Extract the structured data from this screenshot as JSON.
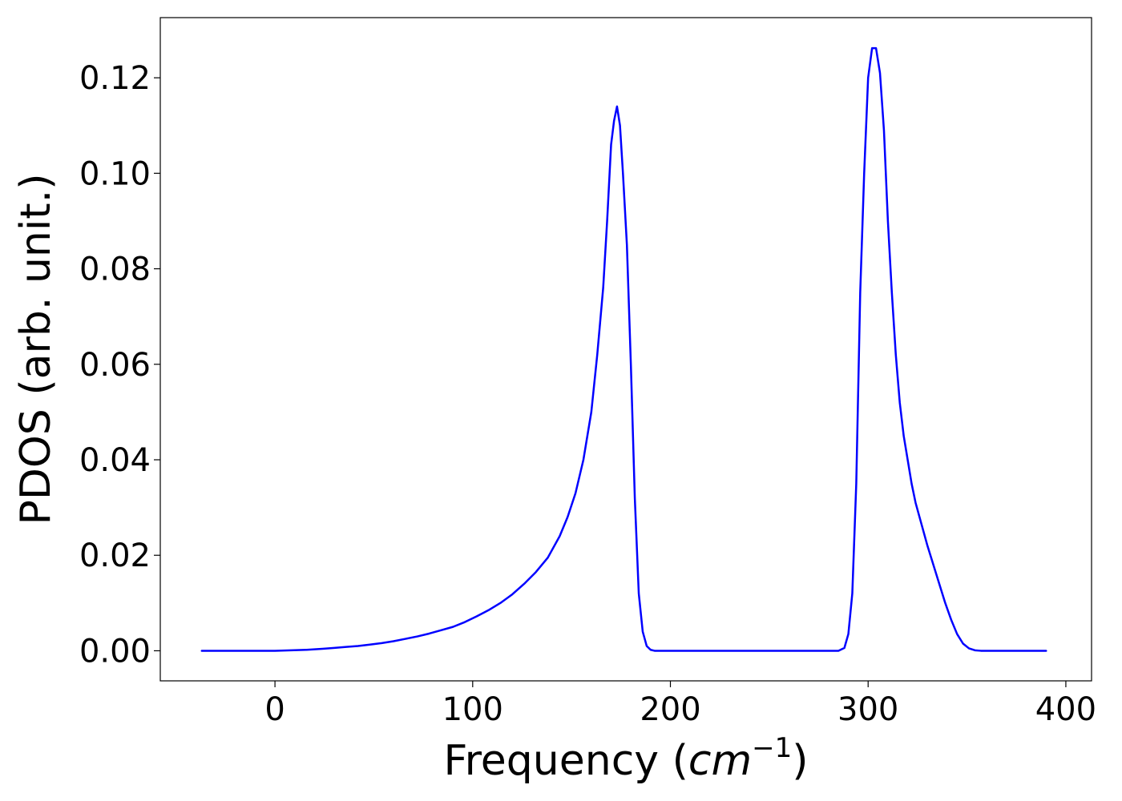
{
  "chart_data": {
    "type": "line",
    "xlabel": "Frequency (",
    "xlabel_unit_base": "cm",
    "xlabel_unit_exp": "−1",
    "xlabel_close": ")",
    "ylabel": "PDOS (arb. unit.)",
    "xlim": [
      -58,
      413
    ],
    "ylim": [
      -0.0063,
      0.1326
    ],
    "x_ticks": [
      0,
      100,
      200,
      300,
      400
    ],
    "x_tick_labels": [
      "0",
      "100",
      "200",
      "300",
      "400"
    ],
    "y_ticks": [
      0.0,
      0.02,
      0.04,
      0.06,
      0.08,
      0.1,
      0.12
    ],
    "y_tick_labels": [
      "0.00",
      "0.02",
      "0.04",
      "0.06",
      "0.08",
      "0.10",
      "0.12"
    ],
    "grid": false,
    "line_color": "#0000ff",
    "series": [
      {
        "x": [
          -37,
          0,
          8,
          16,
          24,
          30,
          36,
          42,
          48,
          54,
          60,
          66,
          72,
          78,
          84,
          90,
          96,
          102,
          108,
          114,
          120,
          126,
          132,
          138,
          144,
          148,
          152,
          156,
          160,
          163,
          166,
          168,
          170,
          171.5,
          173,
          174.5,
          176,
          178,
          180,
          182,
          184,
          186,
          188,
          190,
          192,
          200,
          230,
          260,
          285,
          288,
          290,
          292,
          294,
          296,
          298,
          300,
          302,
          304,
          306,
          308,
          310,
          312,
          314,
          316,
          318,
          320,
          322,
          324,
          326,
          328,
          330,
          333,
          336,
          339,
          342,
          345,
          348,
          351,
          354,
          357,
          360,
          363,
          370,
          390
        ],
        "y": [
          0,
          0,
          0.0001,
          0.0002,
          0.0004,
          0.0006,
          0.0008,
          0.001,
          0.0013,
          0.0016,
          0.002,
          0.0025,
          0.003,
          0.0036,
          0.0043,
          0.005,
          0.006,
          0.0072,
          0.0085,
          0.01,
          0.0118,
          0.014,
          0.0165,
          0.0195,
          0.024,
          0.028,
          0.033,
          0.04,
          0.05,
          0.062,
          0.076,
          0.09,
          0.106,
          0.111,
          0.114,
          0.11,
          0.1,
          0.085,
          0.06,
          0.032,
          0.012,
          0.004,
          0.001,
          0.0002,
          0,
          0,
          0,
          0,
          0,
          0.0006,
          0.0035,
          0.012,
          0.035,
          0.075,
          0.1,
          0.12,
          0.1262,
          0.1262,
          0.121,
          0.109,
          0.09,
          0.075,
          0.062,
          0.052,
          0.045,
          0.04,
          0.035,
          0.031,
          0.028,
          0.025,
          0.022,
          0.018,
          0.014,
          0.01,
          0.0065,
          0.0035,
          0.0015,
          0.0005,
          0.0001,
          0,
          0,
          0,
          0,
          0
        ]
      }
    ]
  }
}
